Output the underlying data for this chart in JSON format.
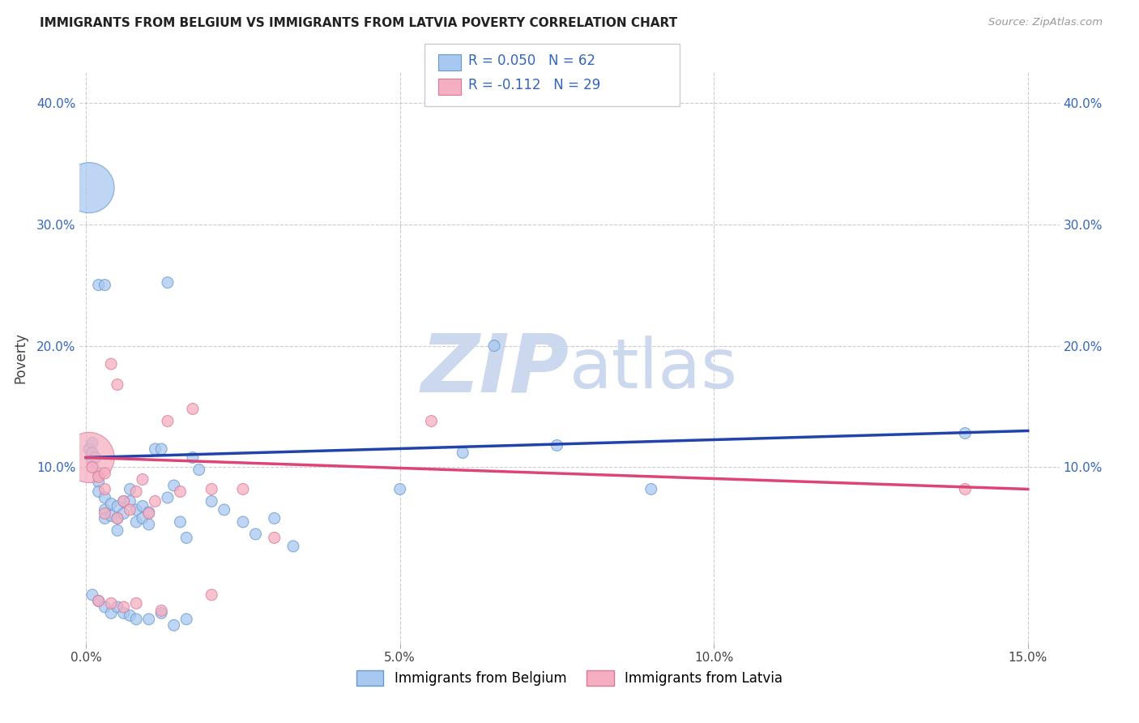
{
  "title": "IMMIGRANTS FROM BELGIUM VS IMMIGRANTS FROM LATVIA POVERTY CORRELATION CHART",
  "source": "Source: ZipAtlas.com",
  "ylabel": "Poverty",
  "xlim": [
    -0.001,
    0.155
  ],
  "ylim": [
    -0.045,
    0.425
  ],
  "x_ticks": [
    0.0,
    0.05,
    0.1,
    0.15
  ],
  "x_tick_labels": [
    "0.0%",
    "5.0%",
    "10.0%",
    "15.0%"
  ],
  "y_ticks": [
    0.1,
    0.2,
    0.3,
    0.4
  ],
  "y_tick_labels": [
    "10.0%",
    "20.0%",
    "30.0%",
    "40.0%"
  ],
  "belgium_color": "#a8c8f0",
  "latvia_color": "#f5afc0",
  "belgium_edge": "#6699cc",
  "latvia_edge": "#dd7799",
  "trend_belgium_color": "#2244aa",
  "trend_latvia_color": "#dd4477",
  "belgium_R": 0.05,
  "belgium_N": 62,
  "latvia_R": -0.112,
  "latvia_N": 29,
  "legend_label_belgium": "Immigrants from Belgium",
  "legend_label_latvia": "Immigrants from Latvia",
  "background_color": "#ffffff",
  "grid_color": "#cccccc",
  "watermark_color": "#ccd8ee",
  "belgium_x": [
    0.0005,
    0.001,
    0.001,
    0.001,
    0.0015,
    0.002,
    0.002,
    0.002,
    0.003,
    0.003,
    0.003,
    0.004,
    0.004,
    0.005,
    0.005,
    0.005,
    0.006,
    0.006,
    0.007,
    0.007,
    0.008,
    0.008,
    0.009,
    0.009,
    0.01,
    0.01,
    0.011,
    0.012,
    0.013,
    0.014,
    0.015,
    0.016,
    0.017,
    0.018,
    0.02,
    0.022,
    0.025,
    0.027,
    0.03,
    0.033,
    0.001,
    0.002,
    0.003,
    0.004,
    0.005,
    0.006,
    0.007,
    0.008,
    0.01,
    0.012,
    0.014,
    0.016,
    0.06,
    0.065,
    0.075,
    0.09,
    0.14,
    0.002,
    0.003,
    0.013,
    0.05,
    0.0005
  ],
  "belgium_y": [
    0.115,
    0.12,
    0.112,
    0.105,
    0.108,
    0.095,
    0.088,
    0.08,
    0.075,
    0.065,
    0.058,
    0.07,
    0.06,
    0.068,
    0.058,
    0.048,
    0.072,
    0.062,
    0.082,
    0.072,
    0.065,
    0.055,
    0.068,
    0.058,
    0.063,
    0.053,
    0.115,
    0.115,
    0.075,
    0.085,
    0.055,
    0.042,
    0.108,
    0.098,
    0.072,
    0.065,
    0.055,
    0.045,
    0.058,
    0.035,
    -0.005,
    -0.01,
    -0.015,
    -0.02,
    -0.015,
    -0.02,
    -0.022,
    -0.025,
    -0.025,
    -0.02,
    -0.03,
    -0.025,
    0.112,
    0.2,
    0.118,
    0.082,
    0.128,
    0.25,
    0.25,
    0.252,
    0.082,
    0.33
  ],
  "belgium_size": [
    100,
    100,
    100,
    100,
    100,
    100,
    100,
    100,
    100,
    100,
    100,
    100,
    100,
    100,
    100,
    100,
    100,
    100,
    100,
    100,
    100,
    100,
    100,
    100,
    100,
    100,
    100,
    100,
    100,
    100,
    100,
    100,
    100,
    100,
    100,
    100,
    100,
    100,
    100,
    100,
    100,
    100,
    100,
    100,
    100,
    100,
    100,
    100,
    100,
    100,
    100,
    100,
    100,
    100,
    100,
    100,
    100,
    100,
    100,
    100,
    100,
    2000
  ],
  "latvia_x": [
    0.0005,
    0.001,
    0.002,
    0.003,
    0.003,
    0.004,
    0.005,
    0.006,
    0.007,
    0.008,
    0.009,
    0.01,
    0.011,
    0.013,
    0.015,
    0.017,
    0.02,
    0.025,
    0.055,
    0.14,
    0.002,
    0.004,
    0.006,
    0.008,
    0.012,
    0.02,
    0.03,
    0.003,
    0.005
  ],
  "latvia_y": [
    0.108,
    0.1,
    0.092,
    0.082,
    0.095,
    0.185,
    0.168,
    0.072,
    0.065,
    0.08,
    0.09,
    0.062,
    0.072,
    0.138,
    0.08,
    0.148,
    0.082,
    0.082,
    0.138,
    0.082,
    -0.01,
    -0.012,
    -0.015,
    -0.012,
    -0.018,
    -0.005,
    0.042,
    0.062,
    0.058
  ],
  "latvia_size": [
    2000,
    100,
    100,
    100,
    100,
    100,
    100,
    100,
    100,
    100,
    100,
    100,
    100,
    100,
    100,
    100,
    100,
    100,
    100,
    100,
    100,
    100,
    100,
    100,
    100,
    100,
    100,
    100,
    100
  ],
  "trend_belgium_x0": 0.0,
  "trend_belgium_y0": 0.108,
  "trend_belgium_x1": 0.15,
  "trend_belgium_y1": 0.13,
  "trend_latvia_x0": 0.0,
  "trend_latvia_y0": 0.108,
  "trend_latvia_x1": 0.15,
  "trend_latvia_y1": 0.082
}
